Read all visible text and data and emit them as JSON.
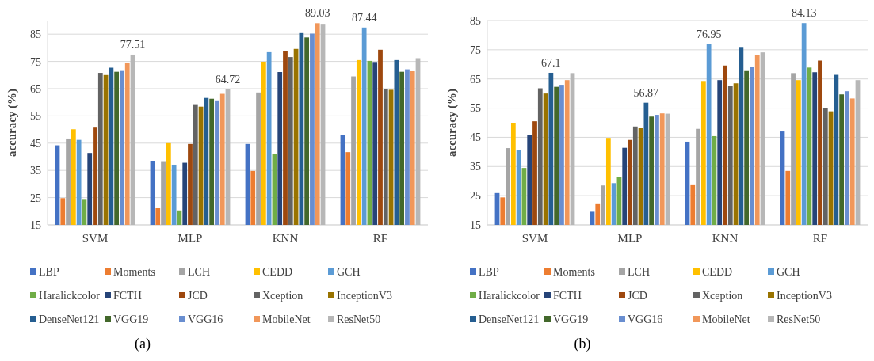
{
  "chart_data": [
    {
      "type": "bar",
      "ylabel": "accuracy (%)",
      "categories": [
        "SVM",
        "MLP",
        "KNN",
        "RF"
      ],
      "ylim": [
        15,
        90
      ],
      "yticks": [
        15,
        25,
        35,
        45,
        55,
        65,
        75,
        85
      ],
      "grid": "y",
      "legend": "bottom",
      "annotations": [
        "(a)"
      ],
      "series": [
        {
          "name": "LBP",
          "color": "#4472c4",
          "values": [
            44.2,
            38.5,
            44.7,
            48.1
          ]
        },
        {
          "name": "Moments",
          "color": "#ed7d31",
          "values": [
            24.8,
            21.1,
            34.8,
            41.7
          ]
        },
        {
          "name": "LCH",
          "color": "#a5a5a5",
          "values": [
            46.7,
            38.1,
            63.6,
            69.5
          ]
        },
        {
          "name": "CEDD",
          "color": "#ffc000",
          "values": [
            50.1,
            45.0,
            74.9,
            75.5
          ]
        },
        {
          "name": "GCH",
          "color": "#5b9bd5",
          "values": [
            46.2,
            37.1,
            78.4,
            87.44
          ],
          "value_labels": [
            null,
            null,
            null,
            "87.44"
          ]
        },
        {
          "name": "Haralickcolor",
          "color": "#70ad47",
          "values": [
            24.2,
            20.3,
            40.9,
            75.2
          ]
        },
        {
          "name": "FCTH",
          "color": "#264478",
          "values": [
            41.4,
            37.8,
            71.1,
            74.8
          ]
        },
        {
          "name": "JCD",
          "color": "#9e480e",
          "values": [
            50.7,
            44.7,
            78.8,
            79.3
          ]
        },
        {
          "name": "Xception",
          "color": "#636363",
          "values": [
            70.8,
            59.3,
            76.6,
            64.8
          ]
        },
        {
          "name": "InceptionV3",
          "color": "#997300",
          "values": [
            70.0,
            58.4,
            79.6,
            64.6
          ]
        },
        {
          "name": "DenseNet121",
          "color": "#255e91",
          "values": [
            72.7,
            61.6,
            85.4,
            75.5
          ]
        },
        {
          "name": "VGG19",
          "color": "#43682b",
          "values": [
            71.2,
            61.3,
            83.8,
            71.2
          ]
        },
        {
          "name": "VGG16",
          "color": "#698ed0",
          "values": [
            71.5,
            60.7,
            85.2,
            72.1
          ]
        },
        {
          "name": "MobileNet",
          "color": "#f1975a",
          "values": [
            74.6,
            63.1,
            89.03,
            71.4
          ],
          "value_labels": [
            null,
            null,
            "89.03",
            null
          ]
        },
        {
          "name": "ResNet50",
          "color": "#b7b7b7",
          "values": [
            77.51,
            64.72,
            88.8,
            76.2
          ],
          "value_labels": [
            "77.51",
            "64.72",
            null,
            null
          ]
        }
      ]
    },
    {
      "type": "bar",
      "ylabel": "accuracy (%)",
      "categories": [
        "SVM",
        "MLP",
        "KNN",
        "RF"
      ],
      "ylim": [
        15,
        85
      ],
      "yticks": [
        15,
        25,
        35,
        45,
        55,
        65,
        75,
        85
      ],
      "grid": "y",
      "legend": "bottom",
      "annotations": [
        "(b)"
      ],
      "series": [
        {
          "name": "LBP",
          "color": "#4472c4",
          "values": [
            25.9,
            19.5,
            43.5,
            47.0
          ]
        },
        {
          "name": "Moments",
          "color": "#ed7d31",
          "values": [
            24.4,
            22.1,
            28.6,
            33.5
          ]
        },
        {
          "name": "LCH",
          "color": "#a5a5a5",
          "values": [
            41.3,
            28.5,
            47.9,
            67.0
          ]
        },
        {
          "name": "CEDD",
          "color": "#ffc000",
          "values": [
            50.0,
            44.8,
            64.3,
            64.6
          ]
        },
        {
          "name": "GCH",
          "color": "#5b9bd5",
          "values": [
            40.5,
            29.3,
            76.95,
            84.13
          ],
          "value_labels": [
            null,
            null,
            "76.95",
            "84.13"
          ]
        },
        {
          "name": "Haralickcolor",
          "color": "#70ad47",
          "values": [
            34.5,
            31.5,
            45.4,
            68.9
          ]
        },
        {
          "name": "FCTH",
          "color": "#264478",
          "values": [
            45.9,
            41.4,
            64.6,
            67.3
          ]
        },
        {
          "name": "JCD",
          "color": "#9e480e",
          "values": [
            50.5,
            44.1,
            69.6,
            71.3
          ]
        },
        {
          "name": "Xception",
          "color": "#636363",
          "values": [
            61.8,
            48.7,
            62.7,
            55.0
          ]
        },
        {
          "name": "InceptionV3",
          "color": "#997300",
          "values": [
            60.0,
            48.1,
            63.5,
            53.9
          ]
        },
        {
          "name": "DenseNet121",
          "color": "#255e91",
          "values": [
            67.1,
            56.87,
            75.7,
            66.4
          ],
          "value_labels": [
            "67.1",
            "56.87",
            null,
            null
          ]
        },
        {
          "name": "VGG19",
          "color": "#43682b",
          "values": [
            62.3,
            52.1,
            67.7,
            59.7
          ]
        },
        {
          "name": "VGG16",
          "color": "#698ed0",
          "values": [
            63.0,
            52.7,
            69.1,
            60.8
          ]
        },
        {
          "name": "MobileNet",
          "color": "#f1975a",
          "values": [
            64.6,
            53.2,
            73.1,
            58.3
          ]
        },
        {
          "name": "ResNet50",
          "color": "#b7b7b7",
          "values": [
            67.0,
            53.1,
            74.1,
            64.6
          ]
        }
      ]
    }
  ]
}
